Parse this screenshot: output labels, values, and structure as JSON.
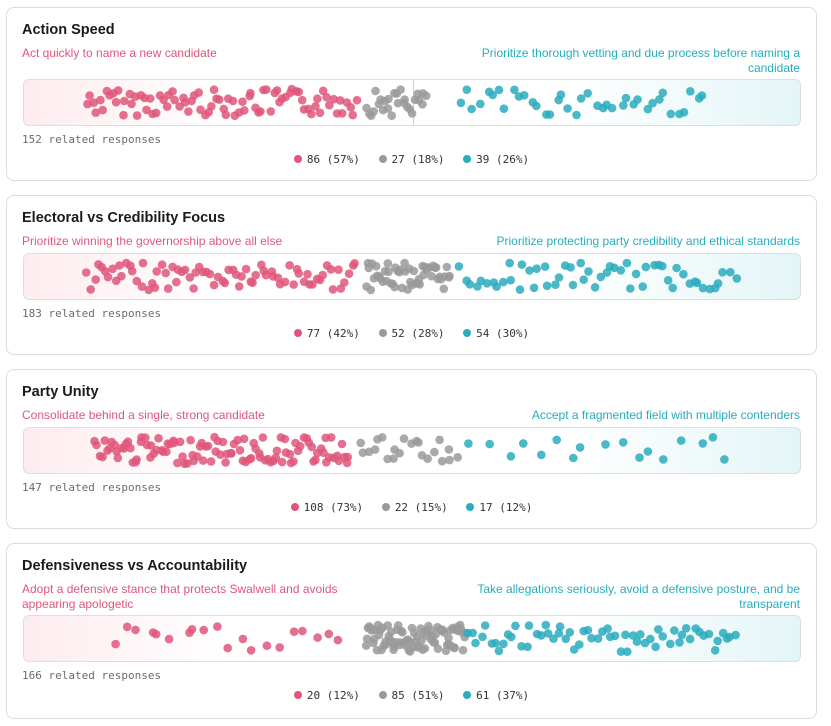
{
  "colors": {
    "left": "#e0567a",
    "neutral": "#9a9a9a",
    "right": "#2aacbd"
  },
  "chart_data": [
    {
      "type": "scatter",
      "title": "Action Speed",
      "left_label": "Act quickly to name a new candidate",
      "right_label": "Prioritize thorough vetting and due process before naming a candidate",
      "responses_text": "152 related responses",
      "groups": [
        {
          "name": "left",
          "count": 86,
          "percent": 57,
          "label": "86 (57%)"
        },
        {
          "name": "neutral",
          "count": 27,
          "percent": 18,
          "label": "27 (18%)"
        },
        {
          "name": "right",
          "count": 39,
          "percent": 26,
          "label": "39 (26%)"
        }
      ]
    },
    {
      "type": "scatter",
      "title": "Electoral vs Credibility Focus",
      "left_label": "Prioritize winning the governorship above all else",
      "right_label": "Prioritize protecting party credibility and ethical standards",
      "responses_text": "183 related responses",
      "groups": [
        {
          "name": "left",
          "count": 77,
          "percent": 42,
          "label": "77 (42%)"
        },
        {
          "name": "neutral",
          "count": 52,
          "percent": 28,
          "label": "52 (28%)"
        },
        {
          "name": "right",
          "count": 54,
          "percent": 30,
          "label": "54 (30%)"
        }
      ]
    },
    {
      "type": "scatter",
      "title": "Party Unity",
      "left_label": "Consolidate behind a single, strong candidate",
      "right_label": "Accept a fragmented field with multiple contenders",
      "responses_text": "147 related responses",
      "groups": [
        {
          "name": "left",
          "count": 108,
          "percent": 73,
          "label": "108 (73%)"
        },
        {
          "name": "neutral",
          "count": 22,
          "percent": 15,
          "label": "22 (15%)"
        },
        {
          "name": "right",
          "count": 17,
          "percent": 12,
          "label": "17 (12%)"
        }
      ]
    },
    {
      "type": "scatter",
      "title": "Defensiveness vs Accountability",
      "left_label": "Adopt a defensive stance that protects Swalwell and avoids appearing apologetic",
      "right_label": "Take allegations seriously, avoid a defensive posture, and be transparent",
      "responses_text": "166 related responses",
      "groups": [
        {
          "name": "left",
          "count": 20,
          "percent": 12,
          "label": "20 (12%)"
        },
        {
          "name": "neutral",
          "count": 85,
          "percent": 51,
          "label": "85 (51%)"
        },
        {
          "name": "right",
          "count": 61,
          "percent": 37,
          "label": "61 (37%)"
        }
      ]
    }
  ]
}
